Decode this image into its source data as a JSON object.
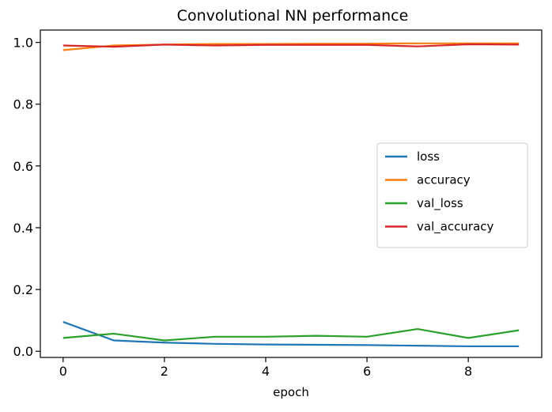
{
  "chart_data": {
    "type": "line",
    "title": "Convolutional NN performance",
    "xlabel": "epoch",
    "ylabel": "",
    "x": [
      0,
      1,
      2,
      3,
      4,
      5,
      6,
      7,
      8,
      9
    ],
    "xlim": [
      -0.45,
      9.45
    ],
    "ylim": [
      -0.02,
      1.04
    ],
    "xticks": [
      "0",
      "2",
      "4",
      "6",
      "8"
    ],
    "yticks": [
      "0.0",
      "0.2",
      "0.4",
      "0.6",
      "0.8",
      "1.0"
    ],
    "grid": false,
    "legend_position": "center-right",
    "series": [
      {
        "name": "loss",
        "color": "#1f77b4",
        "values": [
          0.095,
          0.035,
          0.028,
          0.024,
          0.022,
          0.021,
          0.02,
          0.018,
          0.016,
          0.016
        ]
      },
      {
        "name": "accuracy",
        "color": "#ff7f0e",
        "values": [
          0.975,
          0.99,
          0.993,
          0.995,
          0.995,
          0.996,
          0.996,
          0.997,
          0.997,
          0.997
        ]
      },
      {
        "name": "val_loss",
        "color": "#2ca02c",
        "values": [
          0.043,
          0.057,
          0.035,
          0.047,
          0.047,
          0.05,
          0.047,
          0.072,
          0.043,
          0.068
        ]
      },
      {
        "name": "val_accuracy",
        "color": "#d62728",
        "values": [
          0.99,
          0.986,
          0.993,
          0.99,
          0.992,
          0.992,
          0.992,
          0.987,
          0.994,
          0.993
        ]
      }
    ]
  }
}
